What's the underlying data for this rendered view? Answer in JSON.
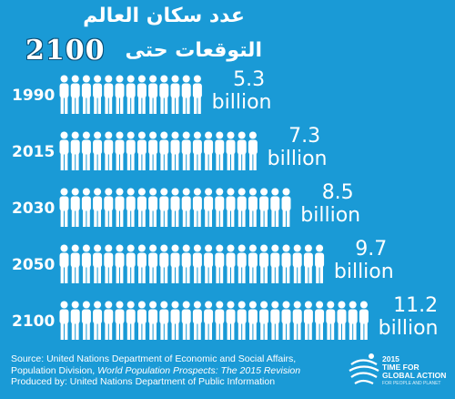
{
  "header": {
    "title": "عدد سكان العالم",
    "subtitle_text": "التوقعات حتى",
    "subtitle_year": "2100"
  },
  "chart_data": {
    "type": "bar",
    "categories": [
      "1990",
      "2015",
      "2030",
      "2050",
      "2100"
    ],
    "values": [
      5.3,
      7.3,
      8.5,
      9.7,
      11.2
    ],
    "value_labels": [
      {
        "number": "5.3",
        "unit": "billion"
      },
      {
        "number": "7.3",
        "unit": "billion"
      },
      {
        "number": "8.5",
        "unit": "billion"
      },
      {
        "number": "9.7",
        "unit": "billion"
      },
      {
        "number": "11.2",
        "unit": "billion"
      }
    ],
    "title": "عدد سكان العالم",
    "xlabel": "",
    "ylabel": "",
    "grid": false,
    "legend": "none"
  },
  "footer": {
    "source_line1": "Source: United Nations Department of Economic and Social Affairs,",
    "source_line2_prefix": "Population Division, ",
    "source_line2_italic": "World Population Prospects: The 2015 Revision",
    "source_line3": "Produced by: United Nations Department of Public Information"
  },
  "logo": {
    "line1": "2015",
    "line2": "TIME FOR",
    "line3": "GLOBAL ACTION",
    "line4": "FOR PEOPLE AND PLANET"
  },
  "colors": {
    "background": "#1a9ad6",
    "figures": "#ffffff",
    "text": "#ffffff"
  }
}
